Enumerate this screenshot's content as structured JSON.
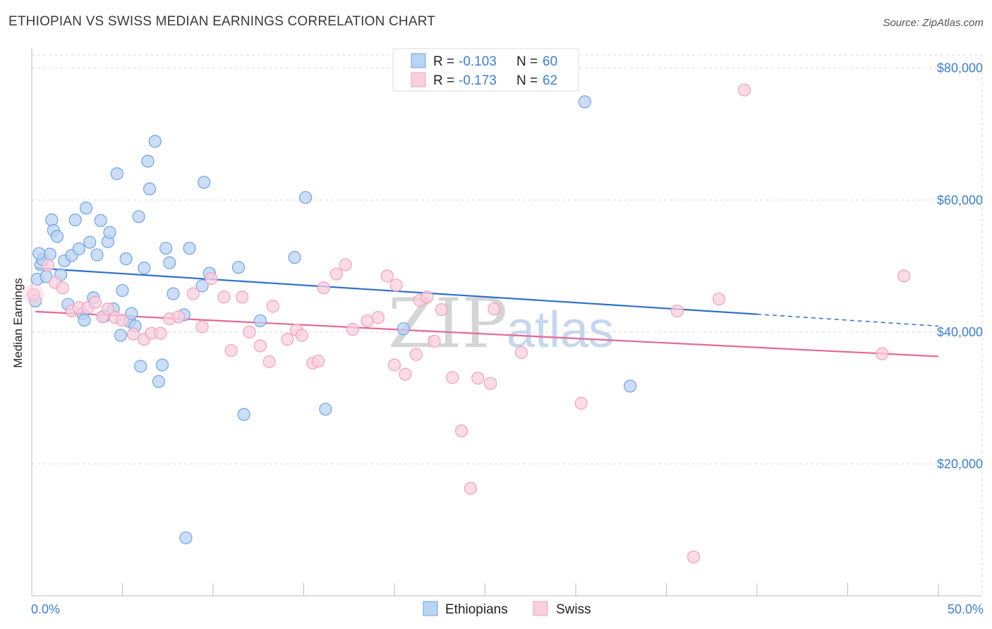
{
  "title": "ETHIOPIAN VS SWISS MEDIAN EARNINGS CORRELATION CHART",
  "source": "Source: ZipAtlas.com",
  "watermark": {
    "zip": "ZIP",
    "atlas": "atlas"
  },
  "chart_data": {
    "type": "scatter",
    "xlabel": "",
    "ylabel": "Median Earnings",
    "xlim": [
      0,
      50
    ],
    "ylim": [
      0,
      82000
    ],
    "x_tick_labels": [
      "0.0%",
      "50.0%"
    ],
    "y_ticks": [
      20000,
      40000,
      60000,
      80000
    ],
    "y_tick_labels": [
      "$20,000",
      "$40,000",
      "$60,000",
      "$80,000"
    ],
    "grid": true,
    "legend": [
      {
        "r_label": "R = ",
        "r_value": "-0.103",
        "n_label": "N = ",
        "n_value": "60"
      },
      {
        "r_label": "R = ",
        "r_value": "-0.173",
        "n_label": "N = ",
        "n_value": "62"
      }
    ],
    "series": [
      {
        "name": "Ethiopians",
        "color": "#6fa3e6",
        "fill": "#b9d3f3",
        "trend_color": "#2f6fce",
        "trend": {
          "x0": 0.2,
          "y0": 49700,
          "x1": 40.0,
          "y1": 42700,
          "x_dash_end": 50.0,
          "y_dash_end": 40900
        },
        "points": [
          [
            0.2,
            44700
          ],
          [
            0.3,
            48000
          ],
          [
            0.5,
            50200
          ],
          [
            0.6,
            51000
          ],
          [
            0.8,
            48400
          ],
          [
            1.0,
            51800
          ],
          [
            1.1,
            57000
          ],
          [
            1.2,
            55400
          ],
          [
            1.4,
            54500
          ],
          [
            1.6,
            48700
          ],
          [
            1.8,
            50800
          ],
          [
            2.0,
            44200
          ],
          [
            2.2,
            51600
          ],
          [
            2.4,
            57000
          ],
          [
            2.6,
            52600
          ],
          [
            2.8,
            42800
          ],
          [
            3.0,
            58800
          ],
          [
            3.2,
            53600
          ],
          [
            3.4,
            45200
          ],
          [
            3.6,
            51700
          ],
          [
            3.8,
            56900
          ],
          [
            4.0,
            42400
          ],
          [
            4.2,
            53700
          ],
          [
            4.3,
            55100
          ],
          [
            4.5,
            43500
          ],
          [
            4.7,
            64000
          ],
          [
            4.9,
            39500
          ],
          [
            5.0,
            46300
          ],
          [
            5.2,
            51100
          ],
          [
            5.4,
            41600
          ],
          [
            5.5,
            42800
          ],
          [
            5.7,
            40900
          ],
          [
            5.9,
            57500
          ],
          [
            6.0,
            34800
          ],
          [
            6.2,
            49700
          ],
          [
            6.4,
            65900
          ],
          [
            6.5,
            61700
          ],
          [
            6.8,
            68900
          ],
          [
            7.0,
            32500
          ],
          [
            7.2,
            35000
          ],
          [
            7.4,
            52700
          ],
          [
            7.6,
            50500
          ],
          [
            7.8,
            45800
          ],
          [
            8.4,
            42600
          ],
          [
            8.5,
            8800
          ],
          [
            8.7,
            52700
          ],
          [
            9.5,
            62700
          ],
          [
            9.4,
            47000
          ],
          [
            9.8,
            48900
          ],
          [
            11.4,
            49800
          ],
          [
            11.7,
            27500
          ],
          [
            12.6,
            41700
          ],
          [
            14.5,
            51300
          ],
          [
            15.1,
            60400
          ],
          [
            16.2,
            28300
          ],
          [
            20.5,
            40500
          ],
          [
            30.5,
            74900
          ],
          [
            33.0,
            31800
          ],
          [
            0.4,
            51900
          ],
          [
            2.9,
            41800
          ]
        ]
      },
      {
        "name": "Swiss",
        "color": "#f0a0bc",
        "fill": "#f9cfdd",
        "trend_color": "#e56896",
        "trend": {
          "x0": 0.2,
          "y0": 43100,
          "x1": 50.0,
          "y1": 36300
        },
        "points": [
          [
            0.1,
            45700
          ],
          [
            0.9,
            50100
          ],
          [
            1.3,
            47500
          ],
          [
            1.7,
            46700
          ],
          [
            2.2,
            43200
          ],
          [
            2.6,
            43700
          ],
          [
            3.1,
            43700
          ],
          [
            3.5,
            44500
          ],
          [
            3.9,
            42300
          ],
          [
            4.2,
            43500
          ],
          [
            4.6,
            42200
          ],
          [
            5.0,
            41800
          ],
          [
            5.6,
            39700
          ],
          [
            6.2,
            38900
          ],
          [
            6.6,
            39800
          ],
          [
            7.1,
            39800
          ],
          [
            7.6,
            42000
          ],
          [
            8.1,
            42300
          ],
          [
            8.9,
            45800
          ],
          [
            9.4,
            40800
          ],
          [
            9.9,
            48100
          ],
          [
            10.6,
            45300
          ],
          [
            11.0,
            37200
          ],
          [
            11.6,
            45300
          ],
          [
            12.0,
            40000
          ],
          [
            12.6,
            37900
          ],
          [
            13.1,
            35500
          ],
          [
            13.3,
            43900
          ],
          [
            14.1,
            38900
          ],
          [
            14.6,
            40300
          ],
          [
            14.9,
            39500
          ],
          [
            15.5,
            35300
          ],
          [
            15.8,
            35600
          ],
          [
            16.1,
            46700
          ],
          [
            16.8,
            48800
          ],
          [
            17.3,
            50200
          ],
          [
            17.7,
            40400
          ],
          [
            18.5,
            41700
          ],
          [
            19.1,
            42200
          ],
          [
            19.6,
            48500
          ],
          [
            20.0,
            35000
          ],
          [
            20.1,
            47100
          ],
          [
            20.6,
            33600
          ],
          [
            21.2,
            36600
          ],
          [
            21.4,
            44800
          ],
          [
            21.8,
            45300
          ],
          [
            22.2,
            38600
          ],
          [
            22.6,
            43400
          ],
          [
            23.2,
            33100
          ],
          [
            23.7,
            25000
          ],
          [
            24.2,
            16300
          ],
          [
            24.6,
            33000
          ],
          [
            25.3,
            32200
          ],
          [
            25.5,
            43500
          ],
          [
            27.0,
            36900
          ],
          [
            30.3,
            29200
          ],
          [
            35.6,
            43200
          ],
          [
            36.5,
            5900
          ],
          [
            37.9,
            45000
          ],
          [
            39.3,
            76700
          ],
          [
            46.9,
            36700
          ],
          [
            48.1,
            48500
          ]
        ]
      }
    ]
  }
}
